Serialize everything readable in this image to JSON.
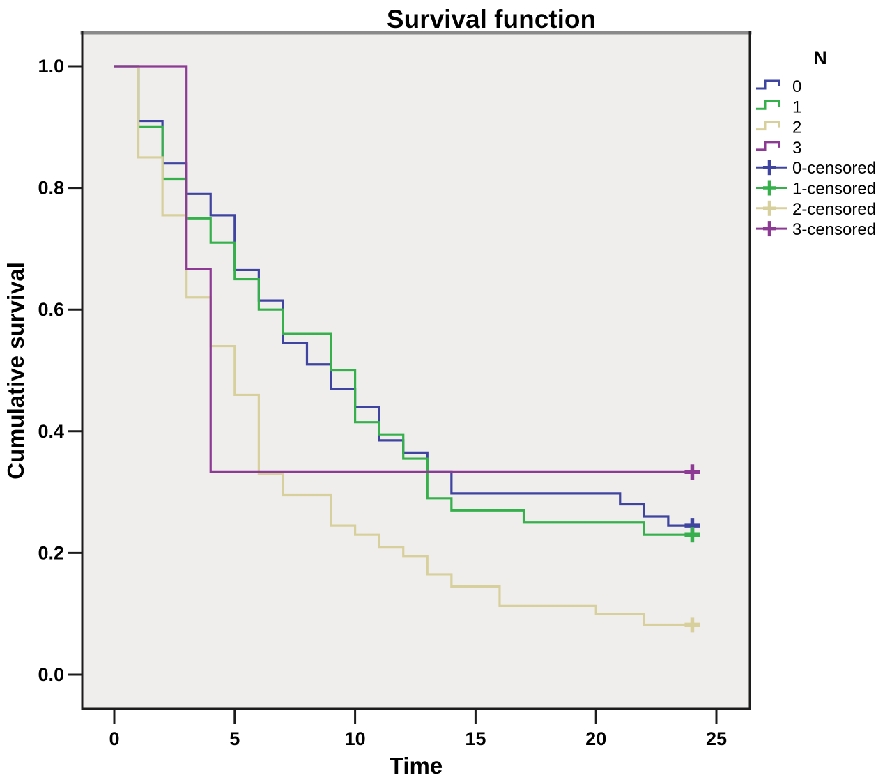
{
  "title": "Survival function",
  "x_axis": {
    "label": "Time",
    "ticks": [
      0,
      5,
      10,
      15,
      20,
      25
    ]
  },
  "y_axis": {
    "label": "Cumulative survival",
    "ticks": [
      "0.0",
      "0.2",
      "0.4",
      "0.6",
      "0.8",
      "1.0"
    ]
  },
  "legend": {
    "title": "N",
    "entries": [
      {
        "label": "0",
        "glyph": "step-line",
        "color": "#3e44a0"
      },
      {
        "label": "1",
        "glyph": "step-line",
        "color": "#35b04b"
      },
      {
        "label": "2",
        "glyph": "step-line",
        "color": "#d7d09c"
      },
      {
        "label": "3",
        "glyph": "step-line",
        "color": "#8d3a94"
      },
      {
        "label": "0-censored",
        "glyph": "plus-marker",
        "color": "#3e44a0"
      },
      {
        "label": "1-censored",
        "glyph": "plus-marker",
        "color": "#35b04b"
      },
      {
        "label": "2-censored",
        "glyph": "plus-marker",
        "color": "#d7d09c"
      },
      {
        "label": "3-censored",
        "glyph": "plus-marker",
        "color": "#8d3a94"
      }
    ]
  },
  "chart_data": {
    "type": "line",
    "subtype": "kaplan-meier-step",
    "title": "Survival function",
    "xlabel": "Time",
    "ylabel": "Cumulative survival",
    "xlim": [
      0,
      25
    ],
    "ylim": [
      0.0,
      1.0
    ],
    "grid": false,
    "legend_position": "right",
    "plot_background": "#efeeec",
    "series": [
      {
        "name": "0",
        "color": "#3e44a0",
        "points": [
          [
            0,
            1.0
          ],
          [
            1,
            0.91
          ],
          [
            2,
            0.84
          ],
          [
            3,
            0.79
          ],
          [
            4,
            0.755
          ],
          [
            5,
            0.665
          ],
          [
            6,
            0.615
          ],
          [
            7,
            0.545
          ],
          [
            8,
            0.51
          ],
          [
            9,
            0.47
          ],
          [
            10,
            0.44
          ],
          [
            11,
            0.385
          ],
          [
            12,
            0.365
          ],
          [
            13,
            0.333
          ],
          [
            14,
            0.298
          ],
          [
            21,
            0.28
          ],
          [
            22,
            0.26
          ],
          [
            23,
            0.245
          ],
          [
            24,
            0.245
          ]
        ],
        "censored": [
          [
            24,
            0.245
          ]
        ]
      },
      {
        "name": "1",
        "color": "#35b04b",
        "points": [
          [
            0,
            1.0
          ],
          [
            1,
            0.9
          ],
          [
            2,
            0.815
          ],
          [
            3,
            0.75
          ],
          [
            4,
            0.71
          ],
          [
            5,
            0.65
          ],
          [
            6,
            0.6
          ],
          [
            7,
            0.56
          ],
          [
            9,
            0.5
          ],
          [
            10,
            0.415
          ],
          [
            11,
            0.395
          ],
          [
            12,
            0.355
          ],
          [
            13,
            0.29
          ],
          [
            14,
            0.27
          ],
          [
            17,
            0.25
          ],
          [
            22,
            0.23
          ],
          [
            24,
            0.23
          ]
        ],
        "censored": [
          [
            24,
            0.23
          ]
        ]
      },
      {
        "name": "2",
        "color": "#d7d09c",
        "points": [
          [
            0,
            1.0
          ],
          [
            1,
            0.85
          ],
          [
            2,
            0.755
          ],
          [
            3,
            0.62
          ],
          [
            4,
            0.54
          ],
          [
            5,
            0.46
          ],
          [
            6,
            0.33
          ],
          [
            7,
            0.295
          ],
          [
            9,
            0.245
          ],
          [
            10,
            0.23
          ],
          [
            11,
            0.21
          ],
          [
            12,
            0.195
          ],
          [
            13,
            0.165
          ],
          [
            14,
            0.145
          ],
          [
            16,
            0.113
          ],
          [
            20,
            0.1
          ],
          [
            22,
            0.082
          ],
          [
            24,
            0.082
          ]
        ],
        "censored": [
          [
            24,
            0.082
          ]
        ]
      },
      {
        "name": "3",
        "color": "#8d3a94",
        "points": [
          [
            0,
            1.0
          ],
          [
            3,
            0.667
          ],
          [
            4,
            0.333
          ],
          [
            24,
            0.333
          ]
        ],
        "censored": [
          [
            24,
            0.333
          ]
        ]
      }
    ]
  }
}
